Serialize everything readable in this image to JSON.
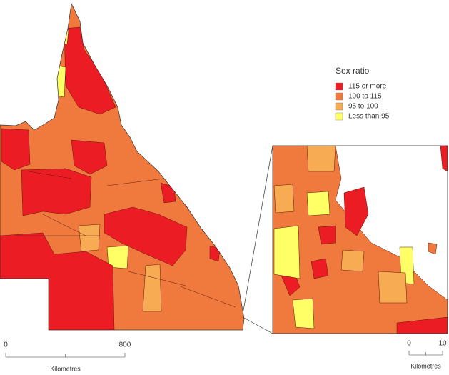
{
  "map": {
    "legend": {
      "title": "Sex ratio",
      "items": [
        {
          "label": "115 or more",
          "color": "#ec1c24"
        },
        {
          "label": "100 to 115",
          "color": "#f07a3e"
        },
        {
          "label": "95 to 100",
          "color": "#f7ab52"
        },
        {
          "label": "Less than 95",
          "color": "#ffff66"
        }
      ]
    },
    "scale_bars": [
      {
        "ticks": [
          0,
          800
        ],
        "label": "Kilometres"
      },
      {
        "ticks": [
          0,
          10
        ],
        "label": "Kilometres"
      }
    ]
  }
}
